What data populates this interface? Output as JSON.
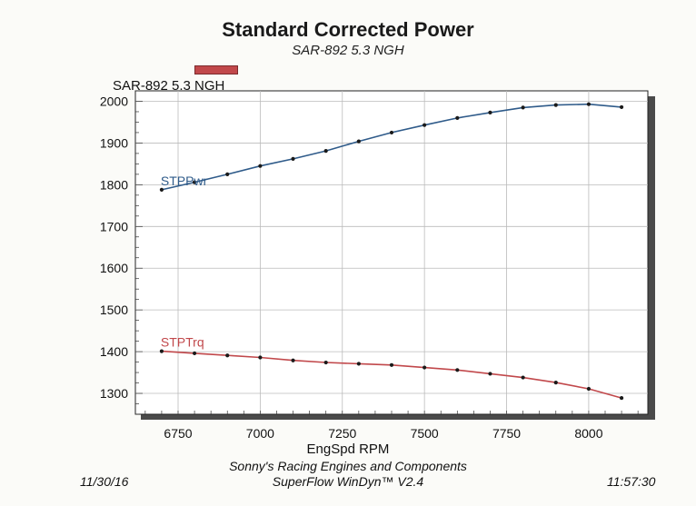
{
  "header": {
    "title": "Standard Corrected Power",
    "subtitle": "SAR-892 5.3 NGH"
  },
  "legend": {
    "label": "SAR-892 5.3 NGH",
    "color": "#c1484b"
  },
  "footer": {
    "company": "Sonny's Racing Engines and Components",
    "software": "SuperFlow WinDyn™ V2.4",
    "date": "11/30/16",
    "time": "11:57:30"
  },
  "chart_data": {
    "type": "line",
    "title": "Standard Corrected Power",
    "subtitle": "SAR-892 5.3 NGH",
    "xlabel": "EngSpd  RPM",
    "ylabel": "",
    "xlim": [
      6620,
      8180
    ],
    "ylim": [
      1250,
      2025
    ],
    "x_ticks": [
      6750,
      7000,
      7250,
      7500,
      7750,
      8000
    ],
    "y_ticks": [
      1300,
      1400,
      1500,
      1600,
      1700,
      1800,
      1900,
      2000
    ],
    "grid": true,
    "x": [
      6700,
      6800,
      6900,
      7000,
      7100,
      7200,
      7300,
      7400,
      7500,
      7600,
      7700,
      7800,
      7900,
      8000,
      8100
    ],
    "series": [
      {
        "name": "STPPwr",
        "color": "#2f5b8a",
        "values": [
          1788,
          1806,
          1825,
          1845,
          1862,
          1881,
          1904,
          1925,
          1943,
          1960,
          1973,
          1985,
          1991,
          1993,
          1986
        ]
      },
      {
        "name": "STPTrq",
        "color": "#c1484b",
        "values": [
          1401,
          1396,
          1391,
          1386,
          1379,
          1374,
          1371,
          1368,
          1362,
          1356,
          1347,
          1338,
          1326,
          1311,
          1289
        ]
      }
    ]
  }
}
